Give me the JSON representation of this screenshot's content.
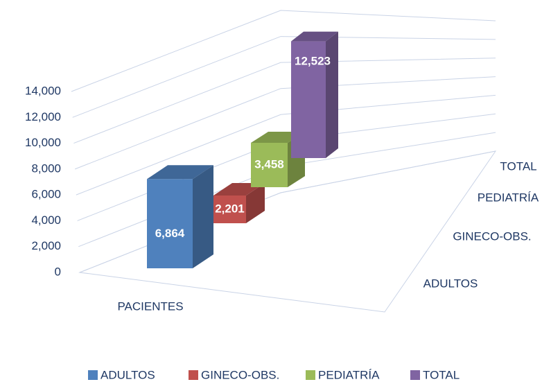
{
  "chart_data": {
    "type": "bar3d",
    "categories": [
      "PACIENTES"
    ],
    "series": [
      {
        "name": "ADULTOS",
        "color": "#4f81bd",
        "values": [
          6864
        ],
        "value_labels": [
          "6,864"
        ]
      },
      {
        "name": "GINECO-OBS.",
        "color": "#c0504d",
        "values": [
          2201
        ],
        "value_labels": [
          "2,201"
        ]
      },
      {
        "name": "PEDIATRÍA",
        "color": "#9bbb59",
        "values": [
          3458
        ],
        "value_labels": [
          "3,458"
        ]
      },
      {
        "name": "TOTAL",
        "color": "#8064a2",
        "values": [
          12523
        ],
        "value_labels": [
          "12,523"
        ]
      }
    ],
    "ylim": [
      0,
      14000
    ],
    "yticks": [
      0,
      {
        "value": 2000,
        "label": "2,000"
      },
      {
        "value": 4000,
        "label": "4,000"
      },
      {
        "value": 6000,
        "label": "6,000"
      },
      {
        "value": 8000,
        "label": "8,000"
      },
      {
        "value": 10000,
        "label": "10,000"
      },
      {
        "value": 12000,
        "label": "12,000"
      },
      {
        "value": 14000,
        "label": "14,000"
      }
    ],
    "grid": true,
    "legend": "bottom"
  }
}
